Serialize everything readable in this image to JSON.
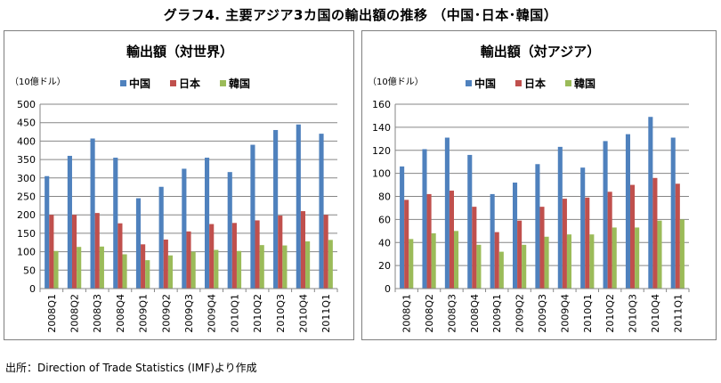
{
  "main_title": "グラフ4. 主要アジア3カ国の輸出額の推移 （中国･日本･韓国）",
  "source_note": "出所：Direction of Trade Statistics (IMF)より作成",
  "colors": {
    "china": "#4f81bd",
    "japan": "#c0504d",
    "korea": "#9bbb59",
    "grid": "#868686"
  },
  "chart_data": [
    {
      "type": "bar",
      "title": "輸出額（対世界）",
      "unit_label": "（10億ドル）",
      "categories": [
        "2008Q1",
        "2008Q2",
        "2008Q3",
        "2008Q4",
        "2009Q1",
        "2009Q2",
        "2009Q3",
        "2009Q4",
        "2010Q1",
        "2010Q2",
        "2010Q3",
        "2010Q4",
        "2011Q1"
      ],
      "ylim": [
        0,
        500
      ],
      "yticks": [
        0,
        50,
        100,
        150,
        200,
        250,
        300,
        350,
        400,
        450,
        500
      ],
      "grid": true,
      "legend_position": "top",
      "series": [
        {
          "name": "中国",
          "color_key": "china",
          "values": [
            305,
            360,
            407,
            355,
            245,
            276,
            325,
            355,
            316,
            390,
            430,
            445,
            420
          ]
        },
        {
          "name": "日本",
          "color_key": "japan",
          "values": [
            200,
            200,
            205,
            177,
            120,
            133,
            155,
            175,
            178,
            185,
            198,
            210,
            200
          ]
        },
        {
          "name": "韓国",
          "color_key": "korea",
          "values": [
            102,
            113,
            114,
            93,
            77,
            90,
            100,
            105,
            102,
            118,
            117,
            128,
            132
          ]
        }
      ]
    },
    {
      "type": "bar",
      "title": "輸出額（対アジア）",
      "unit_label": "（10億ドル）",
      "categories": [
        "2008Q1",
        "2008Q2",
        "2008Q3",
        "2008Q4",
        "2009Q1",
        "2009Q2",
        "2009Q3",
        "2009Q4",
        "2010Q1",
        "2010Q2",
        "2010Q3",
        "2010Q4",
        "2011Q1"
      ],
      "ylim": [
        0,
        160
      ],
      "yticks": [
        0,
        20,
        40,
        60,
        80,
        100,
        120,
        140,
        160
      ],
      "grid": true,
      "legend_position": "top",
      "series": [
        {
          "name": "中国",
          "color_key": "china",
          "values": [
            106,
            121,
            131,
            116,
            82,
            92,
            108,
            123,
            105,
            128,
            134,
            149,
            131
          ]
        },
        {
          "name": "日本",
          "color_key": "japan",
          "values": [
            77,
            82,
            85,
            71,
            49,
            59,
            71,
            78,
            79,
            84,
            90,
            96,
            91
          ]
        },
        {
          "name": "韓国",
          "color_key": "korea",
          "values": [
            43,
            48,
            50,
            38,
            32,
            38,
            45,
            47,
            47,
            53,
            53,
            59,
            60
          ]
        }
      ]
    }
  ]
}
